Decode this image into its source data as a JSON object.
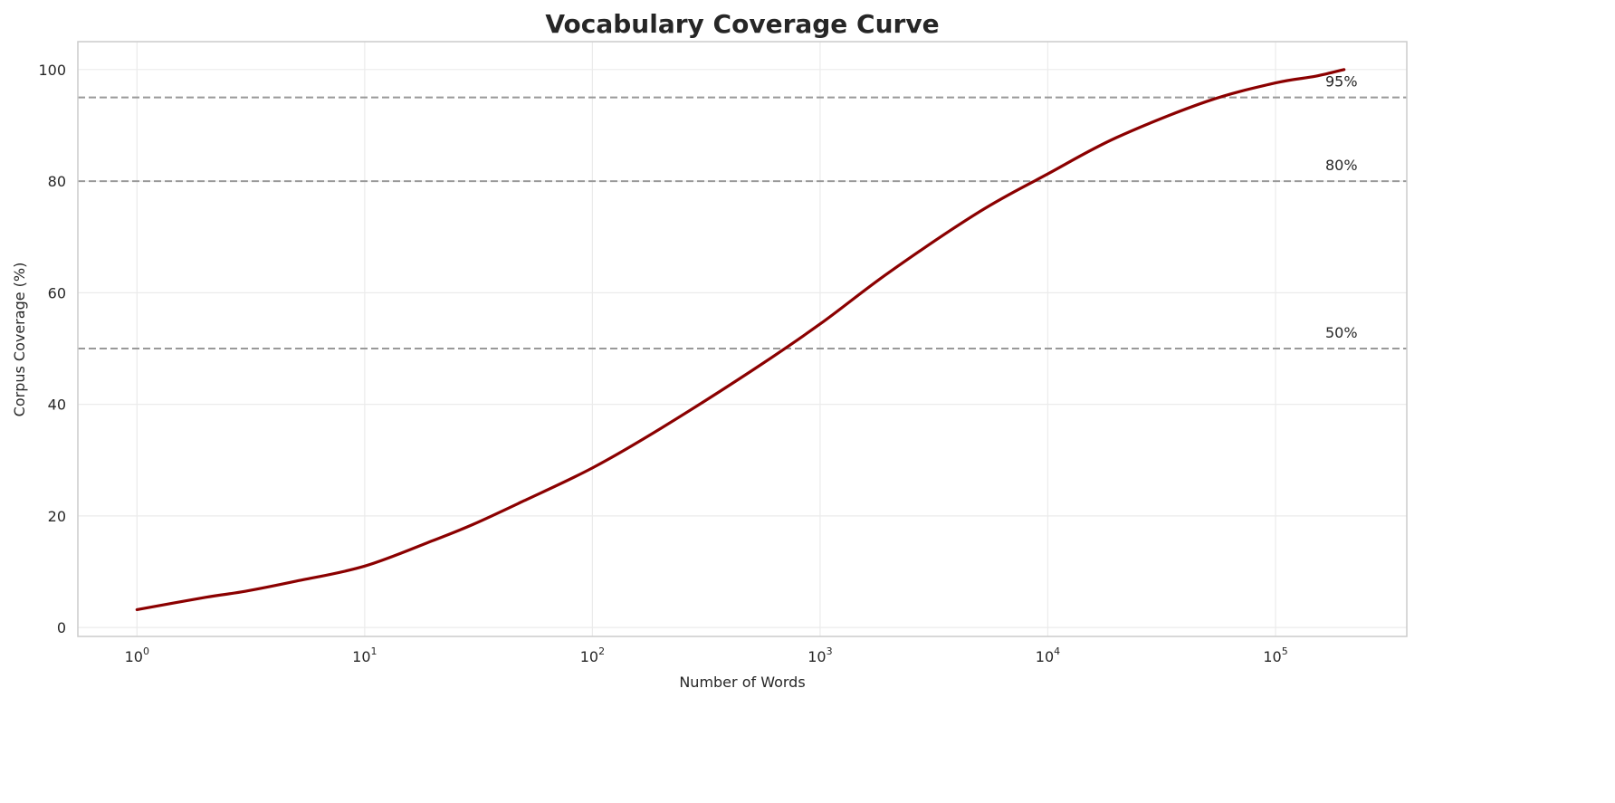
{
  "chart_data": {
    "type": "line",
    "title": "Vocabulary Coverage Curve",
    "xlabel": "Number of Words",
    "ylabel": "Corpus Coverage (%)",
    "xscale": "log",
    "xlim": [
      0.55,
      377000
    ],
    "ylim": [
      -1.6,
      105
    ],
    "grid": true,
    "x_ticks": [
      1,
      10,
      100,
      1000,
      10000,
      100000
    ],
    "x_tick_exponents": [
      "0",
      "1",
      "2",
      "3",
      "4",
      "5"
    ],
    "x_tick_base": "10",
    "y_ticks": [
      "0",
      "20",
      "40",
      "60",
      "80",
      "100"
    ],
    "series": [
      {
        "color": "#8b0000",
        "x": [
          1,
          2,
          3,
          5,
          10,
          20,
          30,
          50,
          100,
          200,
          500,
          1000,
          2000,
          5000,
          10000,
          20000,
          50000,
          100000,
          150000,
          200000
        ],
        "y": [
          3.2,
          5.4,
          6.5,
          8.3,
          11.0,
          15.6,
          18.5,
          22.7,
          28.6,
          35.7,
          46.0,
          54.4,
          63.6,
          74.5,
          81.3,
          87.8,
          94.3,
          97.6,
          98.8,
          100
        ]
      }
    ],
    "reference_lines": [
      {
        "y": 50,
        "label": "50%",
        "color": "#999999",
        "style": "dashed"
      },
      {
        "y": 80,
        "label": "80%",
        "color": "#999999",
        "style": "dashed"
      },
      {
        "y": 95,
        "label": "95%",
        "color": "#999999",
        "style": "dashed"
      }
    ]
  }
}
